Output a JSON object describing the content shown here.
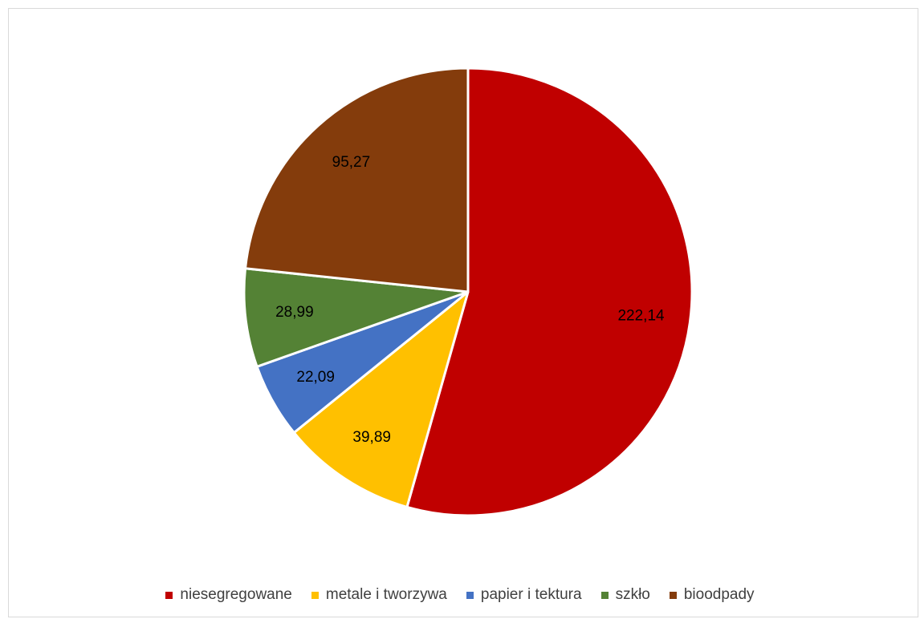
{
  "chart_data": {
    "type": "pie",
    "title": "",
    "start_angle_deg": 0,
    "direction": "clockwise",
    "slices": [
      {
        "label": "niesegregowane",
        "value": 222.14,
        "display": "222,14",
        "color": "#c00000"
      },
      {
        "label": "metale i tworzywa",
        "value": 39.89,
        "display": "39,89",
        "color": "#ffc000"
      },
      {
        "label": "papier i tektura",
        "value": 22.09,
        "display": "22,09",
        "color": "#4472c4"
      },
      {
        "label": "szkło",
        "value": 28.99,
        "display": "28,99",
        "color": "#548235"
      },
      {
        "label": "bioodpady",
        "value": 95.27,
        "display": "95,27",
        "color": "#843c0c"
      }
    ],
    "legend_position": "bottom",
    "data_labels": true
  }
}
